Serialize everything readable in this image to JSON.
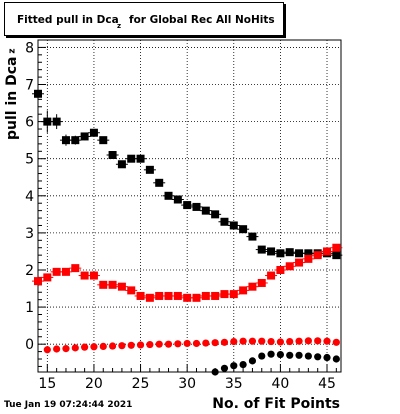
{
  "title": {
    "main": "Fitted pull in Dca",
    "subscript": "z",
    "rest": "for Global Rec All NoHits"
  },
  "timestamp": "Tue Jan 19 07:24:44 2021",
  "chart_data": {
    "type": "scatter",
    "xlabel": "No. of Fit Points",
    "ylabel": "pull in Dca",
    "ylabel_subscript": "z",
    "xlim": [
      14,
      46.5
    ],
    "ylim": [
      -0.75,
      8.2
    ],
    "xticks": [
      15,
      20,
      25,
      30,
      35,
      40,
      45
    ],
    "yticks": [
      0,
      1,
      2,
      3,
      4,
      5,
      6,
      7,
      8
    ],
    "grid": true,
    "series": [
      {
        "color": "#000000",
        "marker": "square",
        "x": [
          14,
          15,
          16,
          17,
          18,
          19,
          20,
          21,
          22,
          23,
          24,
          25,
          26,
          27,
          28,
          29,
          30,
          31,
          32,
          33,
          34,
          35,
          36,
          37,
          38,
          39,
          40,
          41,
          42,
          43,
          44,
          45,
          46
        ],
        "y": [
          6.75,
          6.0,
          6.0,
          5.5,
          5.5,
          5.6,
          5.7,
          5.5,
          5.1,
          4.85,
          5.0,
          5.0,
          4.7,
          4.35,
          4.0,
          3.9,
          3.75,
          3.7,
          3.6,
          3.5,
          3.3,
          3.2,
          3.1,
          2.9,
          2.55,
          2.5,
          2.45,
          2.48,
          2.45,
          2.45,
          2.45,
          2.45,
          2.4
        ],
        "yerr": [
          0.35,
          0.3,
          0.2,
          0.15,
          0.12,
          0.1,
          0.08,
          0.08,
          0.06,
          0.06,
          0.05,
          0.05,
          0.05,
          0.04,
          0.04,
          0.04,
          0.04,
          0.03,
          0.03,
          0.03,
          0.03,
          0.03,
          0.03,
          0.03,
          0.03,
          0.03,
          0.03,
          0.03,
          0.03,
          0.03,
          0.03,
          0.03,
          0.03
        ]
      },
      {
        "color": "#ff0000",
        "marker": "square",
        "x": [
          14,
          15,
          16,
          17,
          18,
          19,
          20,
          21,
          22,
          23,
          24,
          25,
          26,
          27,
          28,
          29,
          30,
          31,
          32,
          33,
          34,
          35,
          36,
          37,
          38,
          39,
          40,
          41,
          42,
          43,
          44,
          45,
          46
        ],
        "y": [
          1.7,
          1.8,
          1.95,
          1.95,
          2.05,
          1.85,
          1.85,
          1.6,
          1.6,
          1.55,
          1.45,
          1.3,
          1.25,
          1.3,
          1.3,
          1.3,
          1.25,
          1.25,
          1.3,
          1.3,
          1.35,
          1.35,
          1.45,
          1.55,
          1.65,
          1.85,
          2.0,
          2.1,
          2.2,
          2.3,
          2.4,
          2.5,
          2.6
        ],
        "yerr": []
      },
      {
        "color": "#ff0000",
        "marker": "circle",
        "x": [
          15,
          16,
          17,
          18,
          19,
          20,
          21,
          22,
          23,
          24,
          25,
          26,
          27,
          28,
          29,
          30,
          31,
          32,
          33,
          34,
          35,
          36,
          37,
          38,
          39,
          40,
          41,
          42,
          43,
          44,
          45,
          46
        ],
        "y": [
          -0.15,
          -0.13,
          -0.12,
          -0.1,
          -0.08,
          -0.07,
          -0.06,
          -0.05,
          -0.04,
          -0.03,
          -0.02,
          -0.01,
          0.0,
          0.0,
          0.01,
          0.02,
          0.02,
          0.03,
          0.04,
          0.05,
          0.07,
          0.08,
          0.08,
          0.08,
          0.07,
          0.06,
          0.07,
          0.08,
          0.09,
          0.09,
          0.08,
          0.05
        ],
        "yerr": []
      },
      {
        "color": "#000000",
        "marker": "circle",
        "x": [
          33,
          34,
          35,
          36,
          37,
          38,
          39,
          40,
          41,
          42,
          43,
          44,
          45,
          46
        ],
        "y": [
          -0.75,
          -0.65,
          -0.58,
          -0.55,
          -0.45,
          -0.32,
          -0.27,
          -0.28,
          -0.3,
          -0.3,
          -0.32,
          -0.34,
          -0.36,
          -0.4
        ],
        "yerr": []
      }
    ]
  }
}
